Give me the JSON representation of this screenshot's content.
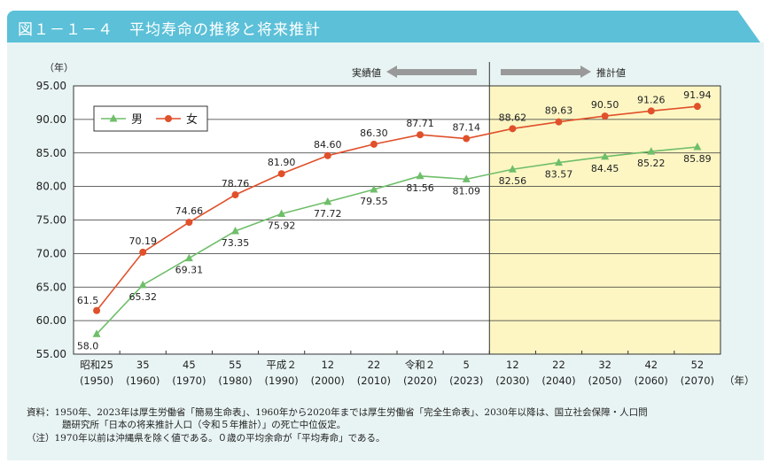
{
  "title": "図１－１－４　平均寿命の推移と将来推計",
  "notes": {
    "source_label": "資料：",
    "source_line1": "1950年、2023年は厚生労働省「簡易生命表」、1960年から2020年までは厚生労働省「完全生命表」、2030年以降は、国立社会保障・人口問",
    "source_line2": "題研究所「日本の将来推計人口（令和５年推計）」の死亡中位仮定。",
    "note_label": "（注）",
    "note_text": "1970年以前は沖縄県を除く値である。０歳の平均余命が「平均寿命」である。"
  },
  "chart_data": {
    "type": "line",
    "ylabel": "（年）",
    "xunit": "（年）",
    "ylim": [
      55,
      95
    ],
    "yticks": [
      "55.00",
      "60.00",
      "65.00",
      "70.00",
      "75.00",
      "80.00",
      "85.00",
      "90.00",
      "95.00"
    ],
    "grid": true,
    "legend_placement": "top-left",
    "categories": [
      [
        "昭和25",
        "(1950)"
      ],
      [
        "35",
        "(1960)"
      ],
      [
        "45",
        "(1970)"
      ],
      [
        "55",
        "(1980)"
      ],
      [
        "平成２",
        "(1990)"
      ],
      [
        "12",
        "(2000)"
      ],
      [
        "22",
        "(2010)"
      ],
      [
        "令和２",
        "(2020)"
      ],
      [
        "5",
        "(2023)"
      ],
      [
        "12",
        "(2030)"
      ],
      [
        "22",
        "(2040)"
      ],
      [
        "32",
        "(2050)"
      ],
      [
        "42",
        "(2060)"
      ],
      [
        "52",
        "(2070)"
      ]
    ],
    "actual_label": "実績値",
    "projection_label": "推計値",
    "projection_start_index": 9,
    "projection_bg": "#fdf6c3",
    "series": [
      {
        "name": "男",
        "color": "#6fbe6a",
        "marker": "triangle",
        "values": [
          58.0,
          65.32,
          69.31,
          73.35,
          75.92,
          77.72,
          79.55,
          81.56,
          81.09,
          82.56,
          83.57,
          84.45,
          85.22,
          85.89
        ],
        "labels": [
          "58.0",
          "65.32",
          "69.31",
          "73.35",
          "75.92",
          "77.72",
          "79.55",
          "81.56",
          "81.09",
          "82.56",
          "83.57",
          "84.45",
          "85.22",
          "85.89"
        ]
      },
      {
        "name": "女",
        "color": "#e0502a",
        "marker": "circle",
        "values": [
          61.5,
          70.19,
          74.66,
          78.76,
          81.9,
          84.6,
          86.3,
          87.71,
          87.14,
          88.62,
          89.63,
          90.5,
          91.26,
          91.94
        ],
        "labels": [
          "61.5",
          "70.19",
          "74.66",
          "78.76",
          "81.90",
          "84.60",
          "86.30",
          "87.71",
          "87.14",
          "88.62",
          "89.63",
          "90.50",
          "91.26",
          "91.94"
        ]
      }
    ]
  }
}
